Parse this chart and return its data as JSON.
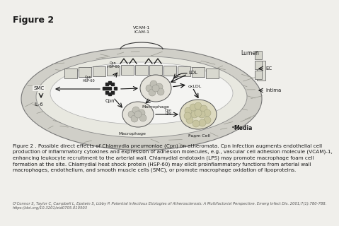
{
  "title": "Figure 2",
  "title_fontsize": 9,
  "title_fontweight": "bold",
  "bg_color": "#f0efeb",
  "caption_text": "Figure 2 . Possible direct effects of Chlamydia pneumoniae (Cpn) on atheromata. Cpn infection augments endothelial cell\nproduction of inflammatory cytokines and expression of adhesion molecules, e.g., vascular cell adhesion molecule (VCAM)-1,\nenhancing leukocyte recruitment to the arterial wall. Chlamydial endotoxin (LPS) may promote macrophage foam cell\nformation at the site. Chlamydial heat shock protein (HSP-60) may elicit proinflammatory functions from arterial wall\nmacrophages, endothelium, and smooth muscle cells (SMC), or promote macrophage oxidation of lipoproteins.",
  "caption_fontsize": 5.2,
  "reference_text": "O'Connor S, Taylor C, Campbell L, Epstein S, Libby P. Potential Infectious Etiologies of Atherosclerosis: A Multifactorial Perspective. Emerg Infect Dis. 2001;7(1):780-788.\nhttps://doi.org/10.3201/eid0705.010503",
  "reference_fontsize": 3.8,
  "text_color": "#1a1a1a",
  "dot_color": "#222222",
  "arrow_color": "#111111"
}
